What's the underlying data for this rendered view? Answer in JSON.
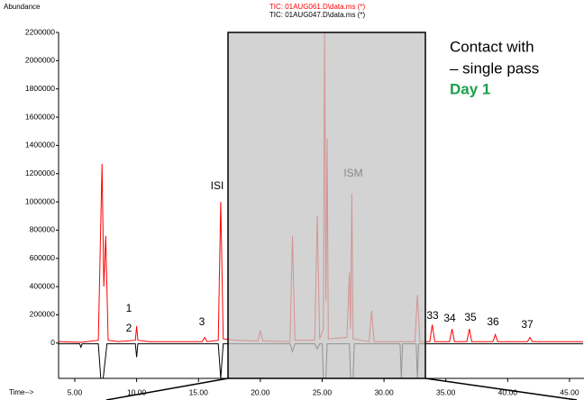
{
  "chart_data": {
    "type": "line",
    "y_axis_label": "Abundance",
    "x_axis_label": "Time-->",
    "series": [
      {
        "name": "TIC: 01AUG047.D\\data.ms (*)",
        "color": "#000000",
        "x": [
          3.7,
          5.4,
          5.5,
          5.6,
          6.9,
          7.1,
          7.3,
          7.6,
          9.9,
          10.0,
          10.1,
          16.6,
          16.8,
          17.0,
          22.4,
          22.6,
          22.8,
          24.4,
          24.6,
          24.8,
          25.0,
          25.1,
          25.3,
          25.4,
          27.2,
          27.3,
          27.5,
          27.6,
          31.3,
          31.4,
          31.5,
          32.6,
          32.7,
          32.8,
          46.1
        ],
        "values": [
          -5000,
          -5000,
          -30000,
          -5000,
          -5000,
          -250000,
          -250000,
          -5000,
          -5000,
          -100000,
          -5000,
          -5000,
          -250000,
          -5000,
          -5000,
          -60000,
          -5000,
          -5000,
          -40000,
          -5000,
          -5000,
          -250000,
          -250000,
          -5000,
          -5000,
          -250000,
          -250000,
          -5000,
          -5000,
          -250000,
          -5000,
          -5000,
          -250000,
          -5000,
          -5000
        ]
      },
      {
        "name": "TIC: 01AUG061.D\\data.ms (*)",
        "color": "#ff0000",
        "x": [
          3.7,
          5.5,
          6.9,
          7.2,
          7.35,
          7.5,
          7.7,
          8.5,
          9.9,
          10.0,
          10.1,
          11,
          15.3,
          15.5,
          15.7,
          16.6,
          16.8,
          17.0,
          18,
          19.8,
          20,
          20.2,
          22.4,
          22.6,
          22.8,
          24.4,
          24.6,
          24.8,
          25.1,
          25.2,
          25.3,
          25.4,
          25.5,
          27.0,
          27.2,
          27.3,
          27.4,
          27.5,
          28.8,
          29.0,
          29.2,
          32.5,
          32.7,
          32.9,
          33.7,
          33.9,
          34.1,
          35.3,
          35.5,
          35.7,
          36.7,
          36.9,
          37.1,
          38.8,
          39.0,
          39.2,
          41.6,
          41.8,
          42.0,
          46.1
        ],
        "values": [
          10000,
          5000,
          20000,
          1270000,
          400000,
          760000,
          20000,
          10000,
          20000,
          120000,
          20000,
          10000,
          10000,
          40000,
          10000,
          20000,
          1000000,
          30000,
          20000,
          15000,
          90000,
          15000,
          10000,
          760000,
          20000,
          20000,
          900000,
          30000,
          100000,
          2200000,
          300000,
          1450000,
          30000,
          40000,
          500000,
          100000,
          1060000,
          30000,
          10000,
          230000,
          10000,
          10000,
          340000,
          10000,
          10000,
          130000,
          10000,
          10000,
          100000,
          10000,
          10000,
          100000,
          10000,
          10000,
          60000,
          10000,
          10000,
          40000,
          10000,
          10000
        ]
      }
    ],
    "xlim": [
      3.69,
      46.17
    ],
    "ylim": [
      -250000,
      2200000
    ],
    "xticks": [
      {
        "value": 5,
        "label": "5.00"
      },
      {
        "value": 10,
        "label": "10.00"
      },
      {
        "value": 15,
        "label": "15.00"
      },
      {
        "value": 20,
        "label": "20.00"
      },
      {
        "value": 25,
        "label": "25.00"
      },
      {
        "value": 30,
        "label": "30.00"
      },
      {
        "value": 35,
        "label": "35.00"
      },
      {
        "value": 40,
        "label": "40.00"
      },
      {
        "value": 45,
        "label": "45.00"
      }
    ],
    "yticks": [
      0,
      200000,
      400000,
      600000,
      800000,
      1000000,
      1200000,
      1400000,
      1600000,
      1800000,
      2000000,
      2200000
    ],
    "annotations": [
      "1",
      "2",
      "3",
      "ISI",
      "ISM",
      "33",
      "34",
      "35",
      "36",
      "37"
    ],
    "note_lines": [
      "Contact with",
      "– single pass",
      "Day 1"
    ]
  }
}
